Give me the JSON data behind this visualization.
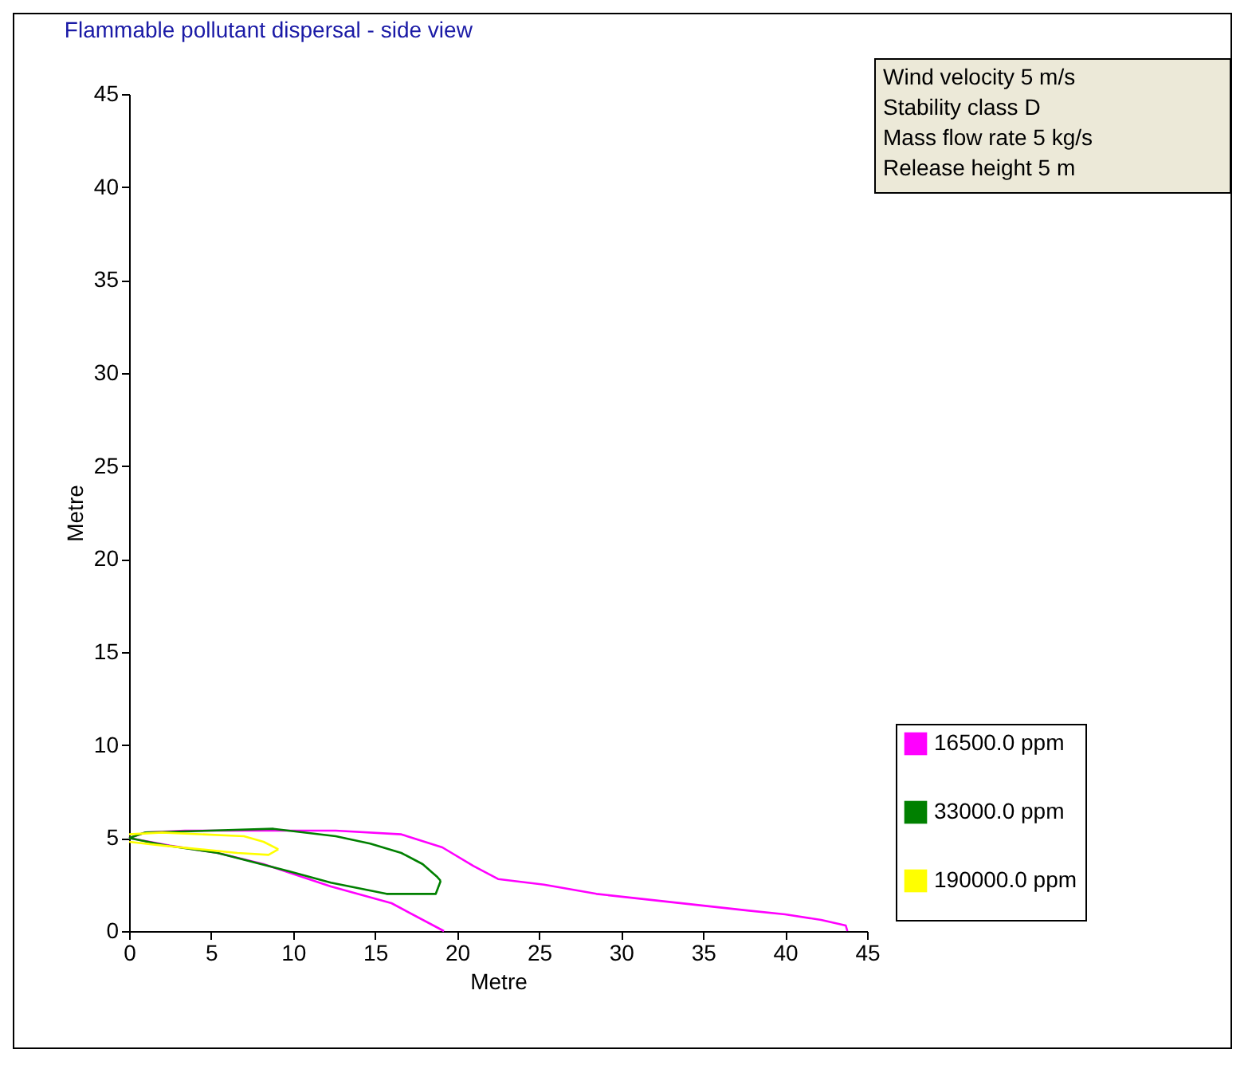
{
  "chart_data": {
    "type": "line",
    "title": "Flammable pollutant dispersal - side view",
    "xlabel": "Metre",
    "ylabel": "Metre",
    "annotations": [
      "Wind velocity 5 m/s",
      "Stability class D",
      "Mass flow rate 5 kg/s",
      "Release height 5 m"
    ],
    "xlim": [
      0,
      45
    ],
    "ylim": [
      0,
      45
    ],
    "xticks": [
      0,
      5,
      10,
      15,
      20,
      25,
      30,
      35,
      40,
      45
    ],
    "yticks": [
      0,
      5,
      10,
      15,
      20,
      25,
      30,
      35,
      40,
      45
    ],
    "grid": false,
    "legend": "bottom right",
    "marker": "none",
    "line_style": "solid",
    "series": [
      {
        "name": "16500.0 ppm",
        "color": "#ff00ff",
        "x": [
          0,
          1,
          3.4,
          12.6,
          16.6,
          19.1,
          21,
          22.5,
          25.3,
          28.5,
          31.6,
          34.7,
          37.8,
          40,
          42.2,
          43.7,
          43.8
        ],
        "values": [
          5,
          5.3,
          5.4,
          5.4,
          5.2,
          4.5,
          3.5,
          2.8,
          2.5,
          2,
          1.7,
          1.4,
          1.1,
          0.9,
          0.6,
          0.3,
          0
        ]
      },
      {
        "color": "#ff00ff",
        "x": [
          0,
          2.5,
          5.4,
          8.2,
          12.3,
          16,
          19.2
        ],
        "values": [
          5,
          4.6,
          4.2,
          3.6,
          2.4,
          1.5,
          0
        ]
      },
      {
        "name": "33000.0 ppm",
        "color": "#008000",
        "x": [
          0,
          1,
          8.8,
          12.6,
          14.7,
          16.6,
          17.9,
          18.8,
          19
        ],
        "values": [
          5,
          5.3,
          5.5,
          5.1,
          4.7,
          4.2,
          3.6,
          2.9,
          2.7
        ]
      },
      {
        "color": "#008000",
        "x": [
          0,
          2.3,
          5.4,
          9.8,
          12.3,
          15.7,
          18.7,
          19
        ],
        "values": [
          5,
          4.6,
          4.2,
          3.2,
          2.6,
          2,
          2,
          2.7
        ]
      },
      {
        "name": "190000.0 ppm",
        "color": "#ffff00",
        "x": [
          0,
          2,
          7,
          8.2,
          9.1
        ],
        "values": [
          5.2,
          5.3,
          5.1,
          4.8,
          4.4
        ]
      },
      {
        "color": "#ffff00",
        "x": [
          0,
          2,
          6.6,
          8.5,
          9.1
        ],
        "values": [
          4.8,
          4.6,
          4.2,
          4.1,
          4.4
        ]
      }
    ]
  }
}
